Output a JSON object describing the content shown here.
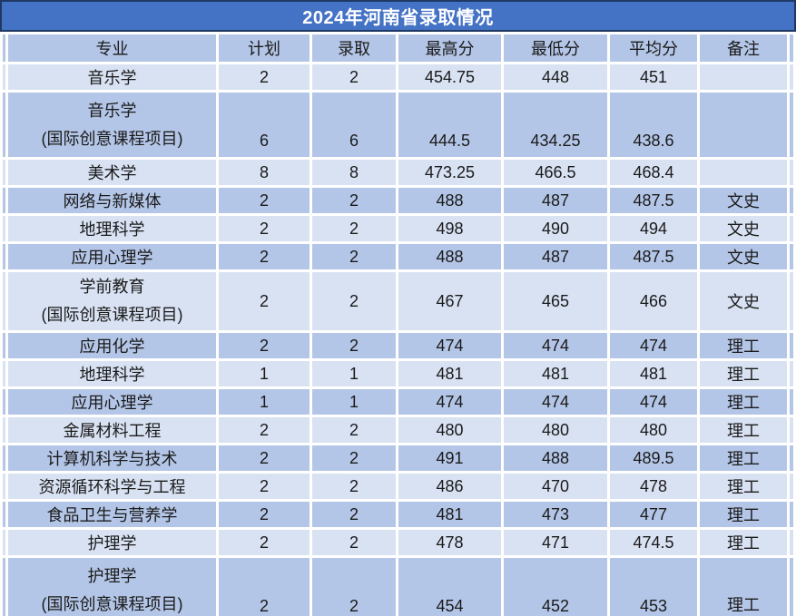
{
  "title": "2024年河南省录取情况",
  "table": {
    "headers": [
      "专业",
      "计划",
      "录取",
      "最高分",
      "最低分",
      "平均分",
      "备注"
    ],
    "rows": [
      [
        "音乐学",
        "2",
        "2",
        "454.75",
        "448",
        "451",
        ""
      ],
      [
        "音乐学\n(国际创意课程项目)",
        "6",
        "6",
        "444.5",
        "434.25",
        "438.6",
        ""
      ],
      [
        "美术学",
        "8",
        "8",
        "473.25",
        "466.5",
        "468.4",
        ""
      ],
      [
        "网络与新媒体",
        "2",
        "2",
        "488",
        "487",
        "487.5",
        "文史"
      ],
      [
        "地理科学",
        "2",
        "2",
        "498",
        "490",
        "494",
        "文史"
      ],
      [
        "应用心理学",
        "2",
        "2",
        "488",
        "487",
        "487.5",
        "文史"
      ],
      [
        "学前教育\n(国际创意课程项目)",
        "2",
        "2",
        "467",
        "465",
        "466",
        "文史"
      ],
      [
        "应用化学",
        "2",
        "2",
        "474",
        "474",
        "474",
        "理工"
      ],
      [
        "地理科学",
        "1",
        "1",
        "481",
        "481",
        "481",
        "理工"
      ],
      [
        "应用心理学",
        "1",
        "1",
        "474",
        "474",
        "474",
        "理工"
      ],
      [
        "金属材料工程",
        "2",
        "2",
        "480",
        "480",
        "480",
        "理工"
      ],
      [
        "计算机科学与技术",
        "2",
        "2",
        "491",
        "488",
        "489.5",
        "理工"
      ],
      [
        "资源循环科学与工程",
        "2",
        "2",
        "486",
        "470",
        "478",
        "理工"
      ],
      [
        "食品卫生与营养学",
        "2",
        "2",
        "481",
        "473",
        "477",
        "理工"
      ],
      [
        "护理学",
        "2",
        "2",
        "478",
        "471",
        "474.5",
        "理工"
      ],
      [
        "护理学\n(国际创意课程项目)",
        "2",
        "2",
        "454",
        "452",
        "453",
        "理工"
      ]
    ]
  },
  "colors": {
    "title_bg": "#4472C4",
    "title_border": "#203864",
    "title_text": "#FFFFFF",
    "header_bg": "#B4C6E7",
    "row_light": "#D9E2F3",
    "row_medium": "#B4C6E7",
    "gridline": "#FFFFFF",
    "text": "#1A1A1A"
  }
}
